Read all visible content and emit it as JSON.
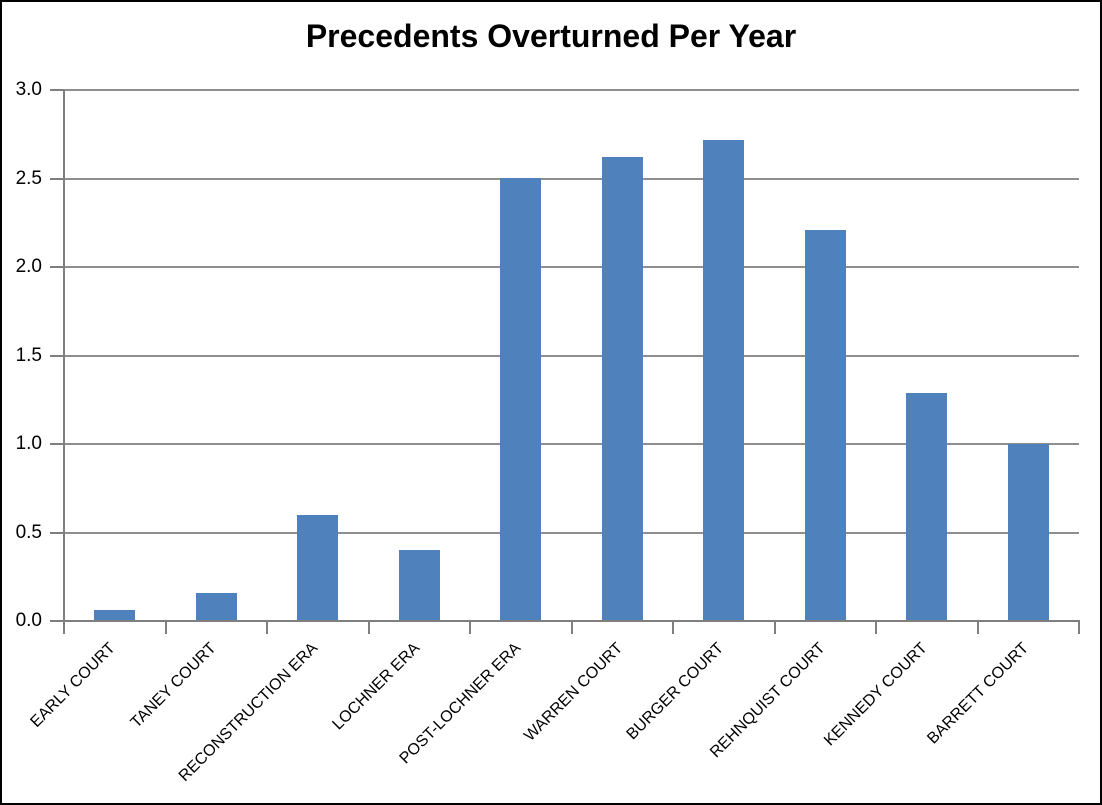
{
  "chart_data": {
    "type": "bar",
    "title": "Precedents Overturned Per Year",
    "categories": [
      "EARLY COURT",
      "TANEY COURT",
      "RECONSTRUCTION ERA",
      "LOCHNER ERA",
      "POST-LOCHNER ERA",
      "WARREN COURT",
      "BURGER COURT",
      "REHNQUIST COURT",
      "KENNEDY COURT",
      "BARRETT COURT"
    ],
    "values": [
      0.06,
      0.16,
      0.6,
      0.4,
      2.5,
      2.62,
      2.72,
      2.21,
      1.29,
      1.0
    ],
    "xlabel": "",
    "ylabel": "",
    "ylim": [
      0,
      3.0
    ],
    "ytick_step": 0.5,
    "ytick_labels": [
      "0.0",
      "0.5",
      "1.0",
      "1.5",
      "2.0",
      "2.5",
      "3.0"
    ],
    "grid": "horizontal-only",
    "legend": "none",
    "colors": {
      "bar": "#4F81BD",
      "gridline": "#8E8E8E",
      "axis": "#7F7F7F",
      "text": "#000000",
      "background": "#FFFFFF",
      "frame_border": "#000000"
    }
  }
}
